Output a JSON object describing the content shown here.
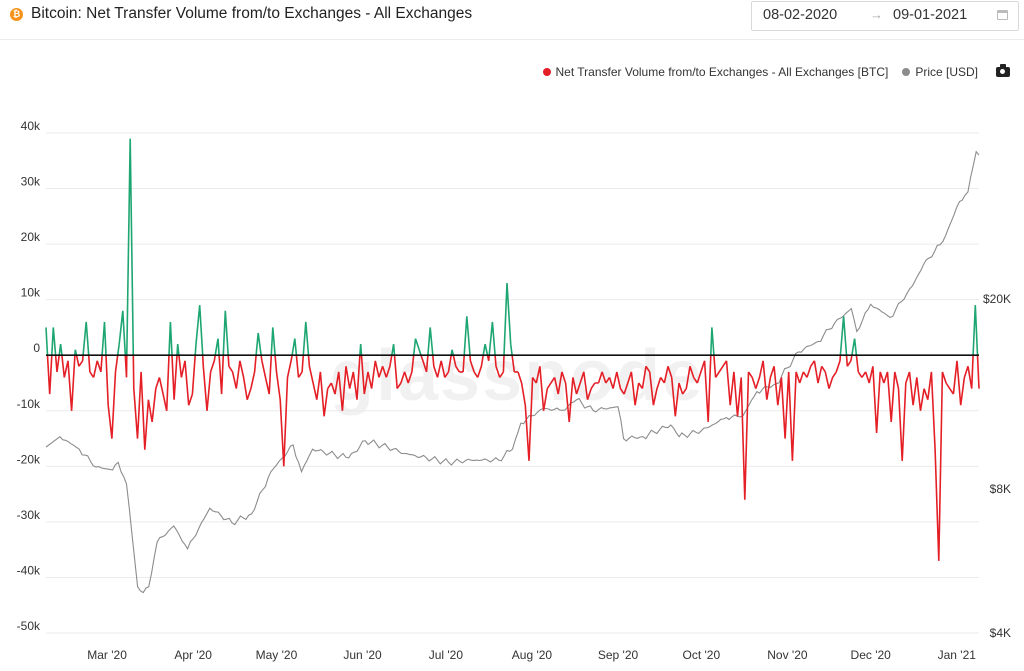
{
  "header": {
    "title": "Bitcoin: Net Transfer Volume from/to Exchanges - All Exchanges",
    "coin_icon": "bitcoin-icon",
    "date_start": "08-02-2020",
    "date_arrow": "→",
    "date_end": "09-01-2021"
  },
  "legend": {
    "net_label": "Net Transfer Volume from/to Exchanges - All Exchanges [BTC]",
    "price_label": "Price [USD]",
    "camera_icon": "camera-icon"
  },
  "watermark": "glassnode",
  "colors": {
    "positive": "#1ea672",
    "negative": "#e41f26",
    "price": "#8c8c8c",
    "zero_line": "#111111",
    "grid": "#ebebeb"
  },
  "chart_data": {
    "type": "line",
    "x_start": "2020-02-08",
    "x_end": "2021-01-09",
    "x_ticks": [
      "Mar '20",
      "Apr '20",
      "May '20",
      "Jun '20",
      "Jul '20",
      "Aug '20",
      "Sep '20",
      "Oct '20",
      "Nov '20",
      "Dec '20",
      "Jan '21"
    ],
    "y_left_ticks": [
      "40k",
      "30k",
      "20k",
      "10k",
      "0",
      "-10k",
      "-20k",
      "-30k",
      "-40k",
      "-50k"
    ],
    "y_left_range": [
      -50000,
      40000
    ],
    "y_right_ticks": [
      "$20K",
      "$8K",
      "$4K"
    ],
    "y_right_scale": "log",
    "grid": true,
    "legend_position": "top-right",
    "series": [
      {
        "name": "Net Transfer Volume from/to Exchanges - All Exchanges [BTC]",
        "axis": "left",
        "sampling": "every 2 days",
        "values": [
          5000,
          -7000,
          5000,
          -3000,
          2000,
          -4000,
          -1000,
          -10000,
          1000,
          -2000,
          -1000,
          6000,
          -3000,
          -4000,
          -1000,
          -3000,
          6000,
          -9000,
          -15000,
          -3000,
          2000,
          8000,
          -4000,
          39000,
          -6000,
          -15000,
          -3000,
          -17000,
          -8000,
          -12000,
          -6000,
          -4000,
          -7000,
          -10000,
          6000,
          -8000,
          2000,
          -4000,
          -1000,
          -9000,
          -7000,
          2000,
          9000,
          -2000,
          -10000,
          -3000,
          -1000,
          3000,
          -7000,
          8000,
          -2000,
          -3000,
          -6000,
          -1000,
          -4000,
          -8000,
          -6000,
          -3000,
          4000,
          -1000,
          -4000,
          -7000,
          5000,
          -3000,
          -8000,
          -20000,
          -4000,
          -1000,
          3000,
          -4000,
          -3000,
          6000,
          -2000,
          -5000,
          -8000,
          -3000,
          -11000,
          -6000,
          -5000,
          -7000,
          -3000,
          -10000,
          -2000,
          -6000,
          -3000,
          -8000,
          2000,
          -7000,
          -3000,
          -6000,
          -1000,
          -4000,
          -2000,
          -4000,
          -2000,
          2000,
          -6000,
          -5000,
          -3000,
          -5000,
          -3000,
          3000,
          1000,
          -1000,
          -3000,
          5000,
          -2000,
          -4000,
          -1000,
          -4000,
          -3000,
          1000,
          -2000,
          -3000,
          -3000,
          7000,
          -1000,
          -3000,
          -4000,
          -2000,
          2000,
          -1000,
          6000,
          -2000,
          -4000,
          -3000,
          13000,
          2000,
          -3000,
          -3000,
          -5000,
          -9000,
          -19000,
          -4000,
          -5000,
          -2000,
          -10000,
          -6000,
          -5000,
          -4000,
          -7000,
          -3000,
          -5000,
          -12000,
          -4000,
          -7000,
          -5000,
          -3000,
          -8000,
          -6000,
          -5000,
          -5000,
          -3000,
          -5000,
          -4000,
          -6000,
          -3000,
          -6000,
          -7000,
          -5000,
          -3000,
          -9000,
          -5000,
          -6000,
          -2000,
          -3000,
          -9000,
          -6000,
          -4000,
          -5000,
          -2000,
          -4000,
          -11000,
          -5000,
          -7000,
          -6000,
          -2000,
          -4000,
          -5000,
          -3000,
          -1000,
          -12000,
          5000,
          -4000,
          -3000,
          -2000,
          -1000,
          -9000,
          -3000,
          -11000,
          -4000,
          -26000,
          -3000,
          -4000,
          -6000,
          -4000,
          -1000,
          -8000,
          -4000,
          -2000,
          -9000,
          -4000,
          -15000,
          -3000,
          -19000,
          -3000,
          -5000,
          -3000,
          -4000,
          -2000,
          -1000,
          -5000,
          -2000,
          -3000,
          -6000,
          -4000,
          -3000,
          -1000,
          7000,
          -2000,
          -1000,
          3000,
          -3000,
          -4000,
          -3000,
          -5000,
          -2000,
          -14000,
          -3000,
          -5000,
          -3000,
          -12000,
          -3000,
          -6000,
          -19000,
          -5000,
          -3000,
          -9000,
          -4000,
          -10000,
          -6000,
          -8000,
          -3000,
          -17000,
          -37000,
          -3000,
          -5000,
          -6000,
          -7000,
          -1000,
          -9000,
          -4000,
          -2000,
          -6000,
          9000,
          -6000
        ]
      },
      {
        "name": "Price [USD]",
        "axis": "right",
        "keypoints": [
          [
            "2020-02-08",
            9800
          ],
          [
            "2020-02-13",
            10300
          ],
          [
            "2020-02-20",
            9700
          ],
          [
            "2020-02-26",
            8900
          ],
          [
            "2020-03-02",
            8800
          ],
          [
            "2020-03-05",
            9100
          ],
          [
            "2020-03-08",
            8200
          ],
          [
            "2020-03-12",
            5000
          ],
          [
            "2020-03-13",
            4900
          ],
          [
            "2020-03-16",
            5000
          ],
          [
            "2020-03-19",
            6200
          ],
          [
            "2020-03-25",
            6700
          ],
          [
            "2020-03-30",
            6000
          ],
          [
            "2020-04-07",
            7300
          ],
          [
            "2020-04-15",
            6800
          ],
          [
            "2020-04-22",
            7100
          ],
          [
            "2020-04-29",
            8700
          ],
          [
            "2020-05-07",
            9900
          ],
          [
            "2020-05-10",
            8700
          ],
          [
            "2020-05-14",
            9700
          ],
          [
            "2020-05-20",
            9500
          ],
          [
            "2020-05-27",
            9300
          ],
          [
            "2020-06-02",
            10100
          ],
          [
            "2020-06-10",
            9800
          ],
          [
            "2020-06-16",
            9500
          ],
          [
            "2020-06-24",
            9300
          ],
          [
            "2020-07-02",
            9100
          ],
          [
            "2020-07-10",
            9200
          ],
          [
            "2020-07-20",
            9200
          ],
          [
            "2020-07-25",
            9700
          ],
          [
            "2020-07-28",
            11000
          ],
          [
            "2020-08-05",
            11800
          ],
          [
            "2020-08-12",
            11700
          ],
          [
            "2020-08-17",
            12300
          ],
          [
            "2020-08-23",
            11700
          ],
          [
            "2020-09-01",
            11900
          ],
          [
            "2020-09-03",
            10200
          ],
          [
            "2020-09-10",
            10300
          ],
          [
            "2020-09-20",
            10900
          ],
          [
            "2020-09-23",
            10300
          ],
          [
            "2020-10-01",
            10600
          ],
          [
            "2020-10-10",
            11300
          ],
          [
            "2020-10-16",
            11400
          ],
          [
            "2020-10-21",
            12800
          ],
          [
            "2020-10-28",
            13300
          ],
          [
            "2020-11-05",
            15500
          ],
          [
            "2020-11-12",
            16300
          ],
          [
            "2020-11-18",
            17800
          ],
          [
            "2020-11-24",
            19100
          ],
          [
            "2020-11-26",
            17100
          ],
          [
            "2020-12-01",
            19500
          ],
          [
            "2020-12-08",
            18300
          ],
          [
            "2020-12-16",
            21300
          ],
          [
            "2020-12-20",
            23600
          ],
          [
            "2020-12-27",
            26400
          ],
          [
            "2021-01-02",
            32000
          ],
          [
            "2021-01-05",
            33500
          ],
          [
            "2021-01-08",
            40700
          ],
          [
            "2021-01-09",
            40000
          ]
        ]
      }
    ]
  }
}
